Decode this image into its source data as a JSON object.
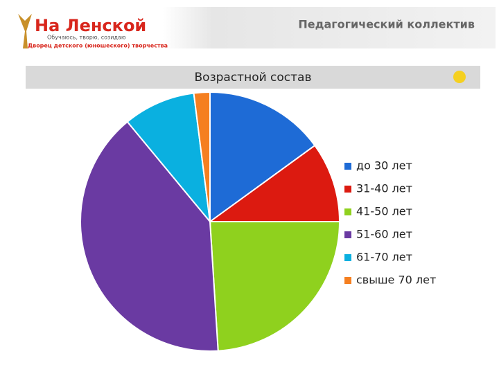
{
  "header": {
    "logo": "На Ленской",
    "motto": "Обучаюсь, творю, созидаю",
    "organization": "Дворец детского (юношеского) творчества",
    "title": "Педагогический коллектив"
  },
  "chart_data": {
    "type": "pie",
    "title": "Возрастной состав",
    "categories": [
      "до  30 лет",
      "31-40 лет",
      "41-50 лет",
      "51-60 лет",
      "61-70 лет",
      "свыше 70 лет"
    ],
    "values": [
      15,
      10,
      24,
      40,
      9,
      2
    ],
    "colors": [
      "#1e6bd6",
      "#dc1a10",
      "#8fd11e",
      "#6a3aa2",
      "#0ab0e0",
      "#f57f20"
    ],
    "legend": "right"
  }
}
